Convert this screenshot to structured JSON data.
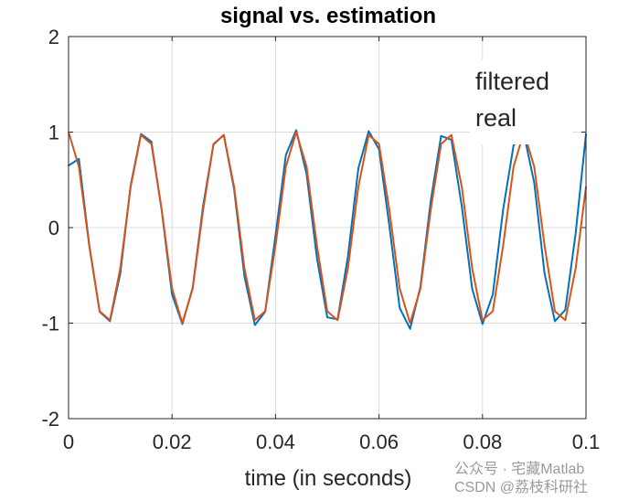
{
  "chart_data": {
    "type": "line",
    "title": "signal vs. estimation",
    "xlabel": "time (in seconds)",
    "ylabel": "",
    "xlim": [
      0,
      0.1
    ],
    "ylim": [
      -2,
      2
    ],
    "grid": true,
    "legend_position": "top-right",
    "x_ticks": [
      0,
      0.02,
      0.04,
      0.06,
      0.08,
      0.1
    ],
    "x_tick_labels": [
      "0",
      "0.02",
      "0.04",
      "0.06",
      "0.08",
      "0.1"
    ],
    "y_ticks": [
      -2,
      -1,
      0,
      1,
      2
    ],
    "y_tick_labels": [
      "-2",
      "-1",
      "0",
      "1",
      "2"
    ],
    "x": [
      0,
      0.002,
      0.004,
      0.006,
      0.008,
      0.01,
      0.012,
      0.014,
      0.016,
      0.018,
      0.02,
      0.022,
      0.024,
      0.026,
      0.028,
      0.03,
      0.032,
      0.034,
      0.036,
      0.038,
      0.04,
      0.042,
      0.044,
      0.046,
      0.048,
      0.05,
      0.052,
      0.054,
      0.056,
      0.058,
      0.06,
      0.062,
      0.064,
      0.066,
      0.068,
      0.07,
      0.072,
      0.074,
      0.076,
      0.078,
      0.08,
      0.082,
      0.084,
      0.086,
      0.088,
      0.09,
      0.092,
      0.094,
      0.096,
      0.098,
      0.1
    ],
    "series": [
      {
        "name": "filtered",
        "color": "#0072BD",
        "values": [
          0.65,
          0.72,
          -0.18,
          -0.88,
          -0.98,
          -0.48,
          0.44,
          0.98,
          0.9,
          0.18,
          -0.7,
          -1.01,
          -0.63,
          0.23,
          0.87,
          0.97,
          0.4,
          -0.51,
          -1.02,
          -0.88,
          -0.08,
          0.76,
          1.02,
          0.56,
          -0.32,
          -0.94,
          -0.96,
          -0.3,
          0.62,
          1.01,
          0.82,
          0.02,
          -0.84,
          -1.06,
          -0.62,
          0.28,
          0.96,
          0.92,
          0.22,
          -0.64,
          -1.01,
          -0.7,
          0.19,
          0.86,
          0.98,
          0.47,
          -0.48,
          -0.98,
          -0.86,
          -0.06,
          0.98
        ]
      },
      {
        "name": "real",
        "color": "#D95319",
        "values": [
          1.0,
          0.637,
          -0.189,
          -0.876,
          -0.969,
          -0.426,
          0.426,
          0.969,
          0.876,
          0.187,
          -0.637,
          -1.0,
          -0.637,
          0.187,
          0.876,
          0.969,
          0.426,
          -0.426,
          -0.969,
          -0.876,
          -0.187,
          0.637,
          1.0,
          0.637,
          -0.187,
          -0.876,
          -0.969,
          -0.426,
          0.426,
          0.969,
          0.876,
          0.187,
          -0.637,
          -1.0,
          -0.637,
          0.187,
          0.876,
          0.969,
          0.426,
          -0.426,
          -0.969,
          -0.876,
          -0.187,
          0.637,
          1.0,
          0.637,
          -0.187,
          -0.876,
          -0.969,
          -0.426,
          0.426
        ]
      }
    ]
  },
  "watermark": {
    "line1": "公众号 · 宅藏Matlab",
    "line2": "CSDN @荔枝科研社"
  }
}
